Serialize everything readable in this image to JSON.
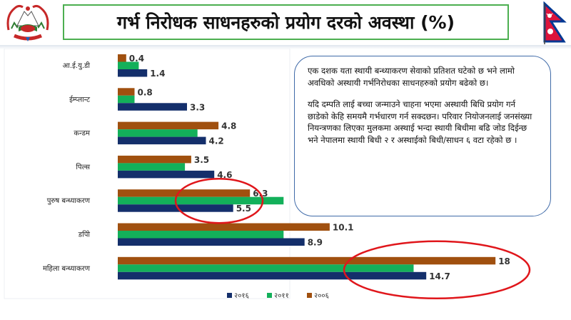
{
  "header": {
    "title": "गर्भ निरोधक साधनहरुको प्रयोग दरको अवस्था (%)"
  },
  "note": {
    "paragraph1": "एक दशक यता स्थायी बन्ध्याकरण सेवाको प्रतिशत घटेको छ भने लामो अवधिको अस्थायी गर्भनिरोधका साधनहरुको प्रयोग बढेको छ।",
    "paragraph2": "यदि दम्पति लाई बच्चा जन्माउने चाहना भएमा अस्थायी बिधि प्रयोग गर्न छाडेको केहि समयमै गर्भधारण गर्न सक्दछन। परिवार नियोजनलाई जनसंख्या नियन्त्रणका लिएका मुलकमा अस्थाई भन्दा स्थायी बिधीमा बढि जोड दिईन्छ भने नेपालमा स्थायी बिधी २ र अस्थाईको बिधी/साधन ६ वटा रहेको छ ।"
  },
  "colors": {
    "series_2006": "#a0500f",
    "series_2011": "#13b05a",
    "series_2016": "#142f6b",
    "title_border": "#4caf50",
    "ellipse": "#e0161b",
    "note_border": "#3f6aa8"
  },
  "chart_data": {
    "type": "bar",
    "orientation": "horizontal",
    "categories": [
      "आ.ई.यु.डी",
      "ईम्प्लान्ट",
      "कन्डम",
      "पिल्स",
      "पुरुष बन्ध्याकरण",
      "डपिो",
      "महिला बन्ध्याकरण"
    ],
    "series": [
      {
        "name": "२००६",
        "color": "#a0500f",
        "values": [
          0.4,
          0.8,
          4.8,
          3.5,
          6.3,
          10.1,
          18
        ]
      },
      {
        "name": "२०११",
        "color": "#13b05a",
        "values": [
          1.0,
          0.8,
          3.8,
          3.2,
          7.9,
          7.9,
          14.1
        ]
      },
      {
        "name": "२०१६",
        "color": "#142f6b",
        "values": [
          1.4,
          3.3,
          4.2,
          4.6,
          5.5,
          8.9,
          14.7
        ]
      }
    ],
    "value_labels": {
      "२००६": [
        "0.4",
        "0.8",
        "4.8",
        "3.5",
        "6.3",
        "10.1",
        "18"
      ],
      "२०१६": [
        "1.4",
        "3.3",
        "4.2",
        "4.6",
        "5.5",
        "8.9",
        "14.7"
      ]
    },
    "legend_order": [
      "२०१६",
      "२०११",
      "२००६"
    ],
    "legend_position": "bottom",
    "xlim": [
      0,
      20
    ],
    "grid": false,
    "highlighted_categories": [
      "पुरुष बन्ध्याकरण",
      "महिला बन्ध्याकरण"
    ]
  }
}
